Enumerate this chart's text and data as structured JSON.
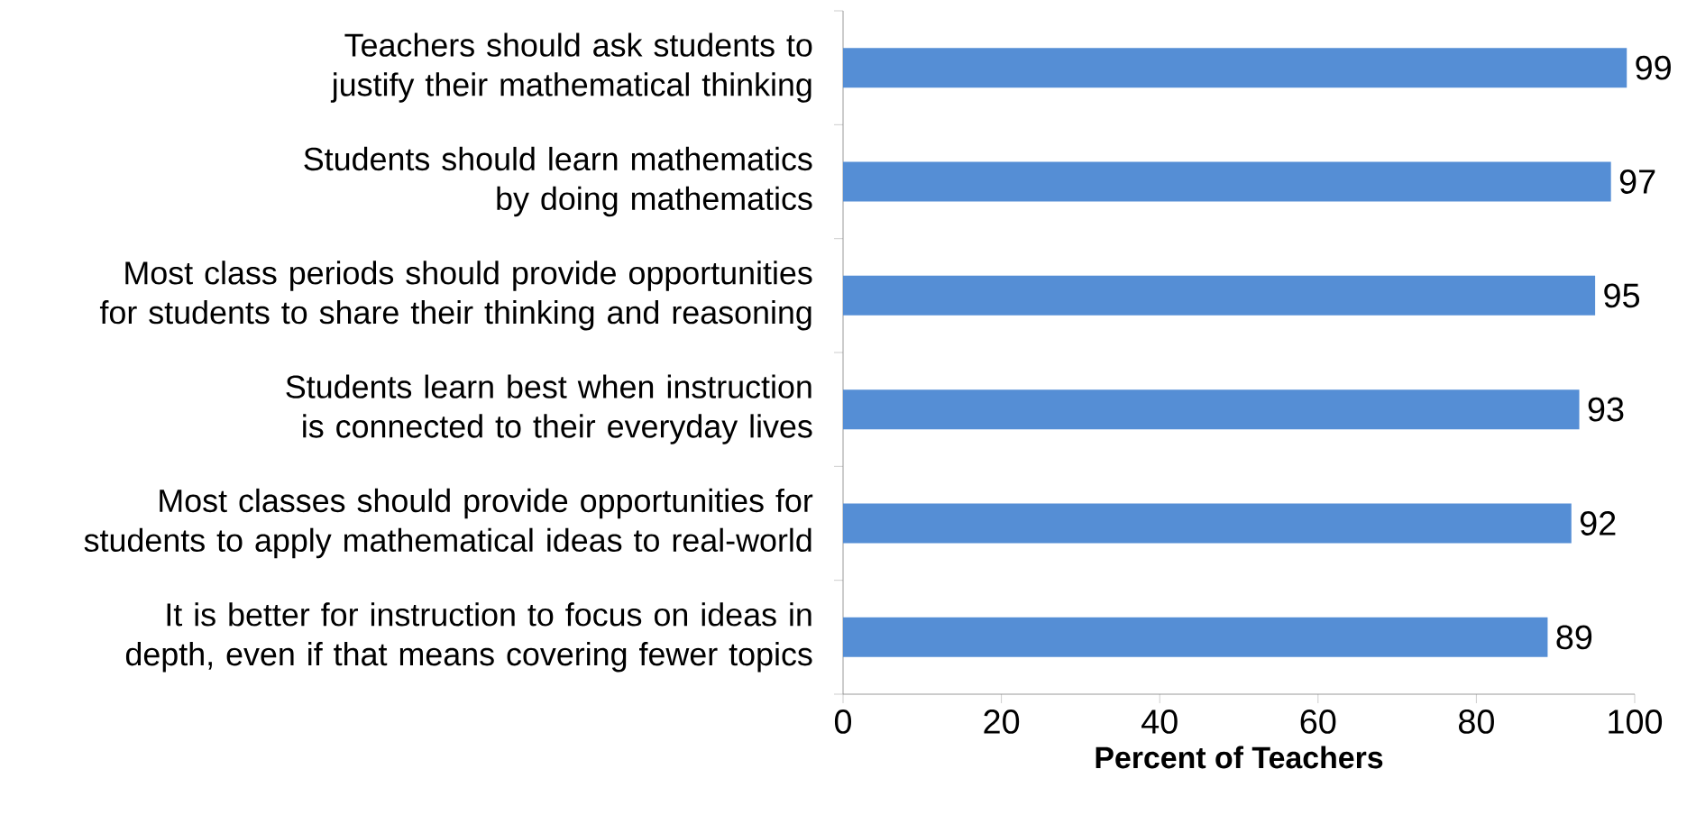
{
  "chart_data": {
    "type": "bar",
    "orientation": "horizontal",
    "xlabel": "Percent of Teachers",
    "categories": [
      "Teachers should ask students to justify their mathematical thinking",
      "Students should learn mathematics by doing mathematics",
      "Most class periods should provide opportunities for students to share their thinking and reasoning",
      "Students learn best when instruction is connected to their everyday lives",
      "Most classes should provide opportunities for students to apply mathematical ideas to real-world",
      "It is better for instruction to focus on ideas in depth, even if that means covering fewer topics"
    ],
    "values": [
      99,
      97,
      95,
      93,
      92,
      89
    ],
    "color": "#558ed5",
    "data_labels": true,
    "xlim": [
      0,
      100
    ],
    "xticks": [
      0,
      20,
      40,
      60,
      80,
      100
    ]
  }
}
